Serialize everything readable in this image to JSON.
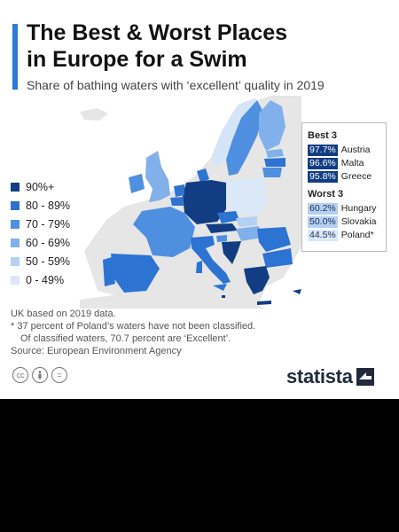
{
  "title_line1": "The Best & Worst Places",
  "title_line2": "in Europe for a Swim",
  "subtitle": "Share of bathing waters with ‘excellent’ quality in 2019",
  "chart_data": {
    "type": "choropleth",
    "measure": "Share of bathing waters with excellent quality (%)",
    "legend": [
      {
        "label": "90%+",
        "color": "#123d82"
      },
      {
        "label": "80 - 89%",
        "color": "#2c73d2"
      },
      {
        "label": "70 - 79%",
        "color": "#4f8fe0"
      },
      {
        "label": "60 - 69%",
        "color": "#82b0ea"
      },
      {
        "label": "50 - 59%",
        "color": "#b4d0f3"
      },
      {
        "label": "0 - 49%",
        "color": "#dbe8f8"
      }
    ],
    "best": {
      "heading": "Best 3",
      "items": [
        {
          "value": "97.7%",
          "country": "Austria"
        },
        {
          "value": "96.6%",
          "country": "Malta"
        },
        {
          "value": "95.8%",
          "country": "Greece"
        }
      ]
    },
    "worst": {
      "heading": "Worst 3",
      "items": [
        {
          "value": "60.2%",
          "country": "Hungary"
        },
        {
          "value": "50.0%",
          "country": "Slovakia"
        },
        {
          "value": "44.5%",
          "country": "Poland*"
        }
      ]
    }
  },
  "notes": [
    "UK based on 2019 data.",
    "* 37 percent of Poland’s waters have not been classified.",
    "Of classified waters, 70.7 percent are ‘Excellent’.",
    "Source: European Environment Agency"
  ],
  "license_icons": [
    "cc",
    "by",
    "="
  ],
  "brand": "statista",
  "colors": {
    "accent": "#2b7bd4",
    "land_other": "#e6e6e6",
    "best_value_bg": "#123d82",
    "worst_value_bg": "#b4d0f3"
  }
}
